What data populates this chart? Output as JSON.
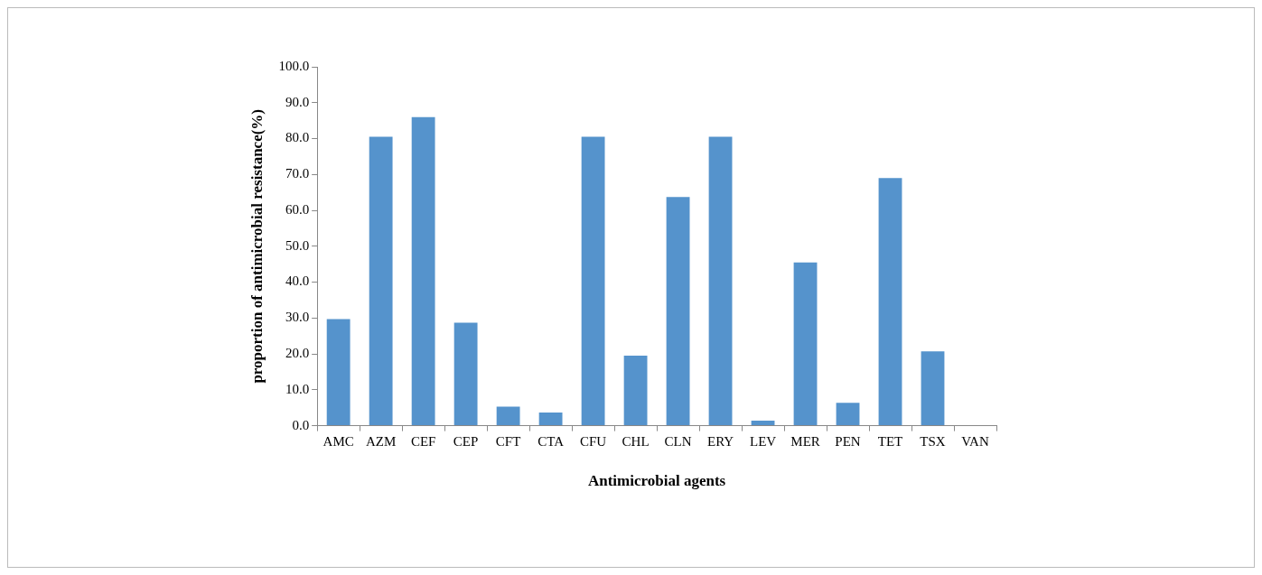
{
  "chart_data": {
    "type": "bar",
    "xlabel": "Antimicrobial agents",
    "ylabel": "proportion of antimicrobial resistance(%)",
    "categories": [
      "AMC",
      "AZM",
      "CEF",
      "CEP",
      "CFT",
      "CTA",
      "CFU",
      "CHL",
      "CLN",
      "ERY",
      "LEV",
      "MER",
      "PEN",
      "TET",
      "TSX",
      "VAN"
    ],
    "values": [
      29.7,
      80.5,
      86.0,
      28.7,
      5.3,
      3.7,
      80.5,
      19.5,
      63.7,
      80.5,
      1.4,
      45.5,
      6.4,
      69.0,
      20.7,
      0
    ],
    "color": "#5593cc",
    "ylim": [
      0,
      100
    ],
    "yticks": [
      {
        "value": 0,
        "label": "0.0"
      },
      {
        "value": 10,
        "label": "10.0"
      },
      {
        "value": 20,
        "label": "20.0"
      },
      {
        "value": 30,
        "label": "30.0"
      },
      {
        "value": 40,
        "label": "40.0"
      },
      {
        "value": 50,
        "label": "50.0"
      },
      {
        "value": 60,
        "label": "60.0"
      },
      {
        "value": 70,
        "label": "70.0"
      },
      {
        "value": 80,
        "label": "80.0"
      },
      {
        "value": 90,
        "label": "90.0"
      },
      {
        "value": 100,
        "label": "100.0"
      }
    ],
    "grid": false,
    "legend": false
  }
}
